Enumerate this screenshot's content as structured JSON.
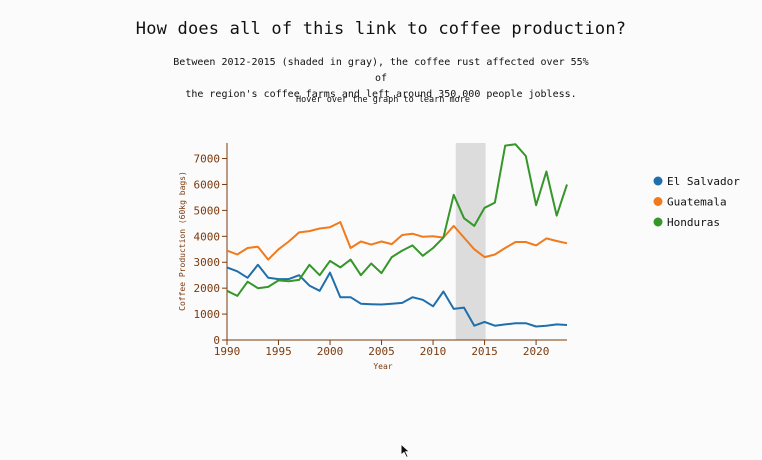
{
  "header": {
    "title": "How does all of this link to coffee production?",
    "subtitle_line1": "Between 2012-2015 (shaded in gray), the coffee rust affected over 55% of",
    "subtitle_line2": "the region's coffee farms and left around 350,000 people jobless.",
    "hint": "Hover over the graph to learn more"
  },
  "chart_data": {
    "type": "line",
    "xlabel": "Year",
    "ylabel": "Coffee Production (60kg bags)",
    "xlim": [
      1990,
      2023
    ],
    "ylim": [
      0,
      7600
    ],
    "x_ticks": [
      1990,
      1995,
      2000,
      2005,
      2010,
      2015,
      2020
    ],
    "y_ticks": [
      0,
      1000,
      2000,
      3000,
      4000,
      5000,
      6000,
      7000
    ],
    "shaded_period": [
      2012.2,
      2015.1
    ],
    "shaded_color": "#dcdcdc",
    "axis_color": "#7a3a0e",
    "legend_position": "right",
    "x": [
      1990,
      1991,
      1992,
      1993,
      1994,
      1995,
      1996,
      1997,
      1998,
      1999,
      2000,
      2001,
      2002,
      2003,
      2004,
      2005,
      2006,
      2007,
      2008,
      2009,
      2010,
      2011,
      2012,
      2013,
      2014,
      2015,
      2016,
      2017,
      2018,
      2019,
      2020,
      2021,
      2022,
      2023
    ],
    "series": [
      {
        "name": "El Salvador",
        "color": "#1f6fad",
        "values": [
          2800,
          2650,
          2400,
          2900,
          2400,
          2350,
          2350,
          2500,
          2100,
          1900,
          2600,
          1650,
          1650,
          1400,
          1380,
          1370,
          1400,
          1430,
          1650,
          1550,
          1300,
          1870,
          1200,
          1250,
          550,
          700,
          550,
          600,
          650,
          650,
          520,
          550,
          600,
          580
        ]
      },
      {
        "name": "Guatemala",
        "color": "#f07a1c",
        "values": [
          3450,
          3300,
          3550,
          3600,
          3100,
          3500,
          3800,
          4150,
          4200,
          4300,
          4350,
          4550,
          3550,
          3800,
          3680,
          3800,
          3700,
          4050,
          4100,
          3980,
          4000,
          3950,
          4400,
          3950,
          3500,
          3200,
          3300,
          3550,
          3780,
          3780,
          3650,
          3920,
          3820,
          3730
        ]
      },
      {
        "name": "Honduras",
        "color": "#35962a",
        "values": [
          1900,
          1700,
          2250,
          2000,
          2050,
          2300,
          2270,
          2320,
          2900,
          2500,
          3050,
          2800,
          3100,
          2500,
          2950,
          2580,
          3200,
          3450,
          3650,
          3250,
          3550,
          3950,
          5600,
          4700,
          4400,
          5100,
          5300,
          7500,
          7550,
          7100,
          5200,
          6500,
          4800,
          6000
        ]
      }
    ]
  }
}
